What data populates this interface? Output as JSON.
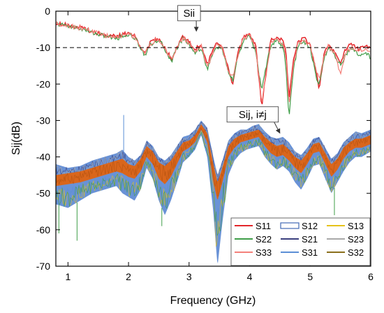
{
  "chart_data": {
    "type": "line",
    "title": "",
    "xlabel": "Frequency (GHz)",
    "ylabel": "Sij(dB)",
    "xlim": [
      0.8,
      6.0
    ],
    "ylim": [
      -70,
      0
    ],
    "x_ticks": [
      1,
      2,
      3,
      4,
      5,
      6
    ],
    "x_tick_labels": [
      "1",
      "2",
      "3",
      "4",
      "5",
      "6"
    ],
    "y_ticks": [
      0,
      -10,
      -20,
      -30,
      -40,
      -50,
      -60,
      -70
    ],
    "y_tick_labels": [
      "0",
      "-10",
      "-20",
      "-30",
      "-40",
      "-50",
      "-60",
      "-70"
    ],
    "grid": false,
    "legend_position": "bottom-right",
    "reference_line": {
      "y": -10,
      "style": "dashed",
      "color": "#000000"
    },
    "annotations": [
      {
        "text": "Sii",
        "x": 3.0,
        "y": -1.5,
        "arrow_to": [
          3.12,
          -5.5
        ]
      },
      {
        "text": "Sij, i≠j",
        "x": 4.05,
        "y": -29.3,
        "arrow_to": [
          4.5,
          -33.5
        ]
      }
    ],
    "reflection_series": [
      {
        "name": "S11",
        "color": "#e3262b",
        "x": [
          0.8,
          1.0,
          1.2,
          1.4,
          1.6,
          1.8,
          2.0,
          2.1,
          2.2,
          2.27,
          2.35,
          2.45,
          2.55,
          2.65,
          2.72,
          2.8,
          2.9,
          3.0,
          3.1,
          3.2,
          3.3,
          3.38,
          3.45,
          3.55,
          3.65,
          3.72,
          3.8,
          3.9,
          4.0,
          4.1,
          4.2,
          4.26,
          4.35,
          4.45,
          4.55,
          4.6,
          4.65,
          4.72,
          4.8,
          4.9,
          5.0,
          5.1,
          5.15,
          5.22,
          5.3,
          5.4,
          5.5,
          5.6,
          5.7,
          5.8,
          5.9,
          6.0
        ],
        "y": [
          -3.2,
          -3.8,
          -4.5,
          -5.5,
          -6.5,
          -7.0,
          -6.0,
          -6.8,
          -9.5,
          -11.5,
          -9.0,
          -7.5,
          -8.5,
          -11.5,
          -13.0,
          -9.5,
          -7.0,
          -8.5,
          -10.5,
          -9.0,
          -15.0,
          -11.0,
          -8.5,
          -9.5,
          -16.0,
          -20.5,
          -12.0,
          -7.0,
          -6.0,
          -9.5,
          -26.5,
          -18.0,
          -8.0,
          -7.0,
          -8.0,
          -11.0,
          -24.0,
          -14.0,
          -8.0,
          -7.5,
          -9.0,
          -17.0,
          -22.0,
          -12.5,
          -9.0,
          -11.0,
          -14.0,
          -10.0,
          -9.0,
          -10.5,
          -9.5,
          -10.5
        ]
      },
      {
        "name": "S22",
        "color": "#3f9e48",
        "x": [
          0.8,
          1.0,
          1.2,
          1.4,
          1.6,
          1.8,
          2.0,
          2.1,
          2.2,
          2.27,
          2.35,
          2.45,
          2.55,
          2.65,
          2.72,
          2.8,
          2.9,
          3.0,
          3.1,
          3.2,
          3.3,
          3.38,
          3.45,
          3.55,
          3.65,
          3.72,
          3.8,
          3.9,
          4.0,
          4.1,
          4.2,
          4.26,
          4.35,
          4.45,
          4.55,
          4.6,
          4.65,
          4.72,
          4.8,
          4.9,
          5.0,
          5.1,
          5.15,
          5.22,
          5.3,
          5.4,
          5.5,
          5.6,
          5.7,
          5.8,
          5.9,
          6.0
        ],
        "y": [
          -3.5,
          -4.0,
          -4.8,
          -5.8,
          -6.8,
          -7.5,
          -6.3,
          -7.3,
          -10.0,
          -12.0,
          -9.5,
          -8.0,
          -9.0,
          -12.0,
          -13.5,
          -10.0,
          -7.5,
          -9.0,
          -11.5,
          -10.0,
          -16.0,
          -12.5,
          -9.5,
          -10.5,
          -17.0,
          -19.0,
          -13.0,
          -8.0,
          -7.0,
          -11.0,
          -22.0,
          -16.0,
          -9.5,
          -8.0,
          -9.5,
          -15.0,
          -29.5,
          -16.0,
          -9.5,
          -8.5,
          -10.0,
          -18.0,
          -20.0,
          -13.5,
          -10.0,
          -12.0,
          -15.0,
          -11.5,
          -10.5,
          -12.0,
          -11.0,
          -13.0
        ]
      },
      {
        "name": "S33",
        "color": "#f4807a",
        "x": [
          0.8,
          1.0,
          1.2,
          1.4,
          1.6,
          1.8,
          2.0,
          2.1,
          2.2,
          2.27,
          2.35,
          2.45,
          2.55,
          2.65,
          2.72,
          2.8,
          2.9,
          3.0,
          3.1,
          3.2,
          3.3,
          3.38,
          3.45,
          3.55,
          3.65,
          3.72,
          3.8,
          3.9,
          4.0,
          4.1,
          4.2,
          4.26,
          4.35,
          4.45,
          4.55,
          4.6,
          4.65,
          4.72,
          4.8,
          4.9,
          5.0,
          5.1,
          5.15,
          5.22,
          5.3,
          5.4,
          5.5,
          5.6,
          5.7,
          5.8,
          5.9,
          6.0
        ],
        "y": [
          -3.4,
          -3.9,
          -4.6,
          -5.6,
          -6.6,
          -7.2,
          -6.1,
          -7.0,
          -9.8,
          -11.8,
          -9.3,
          -7.8,
          -8.8,
          -11.8,
          -13.2,
          -9.8,
          -7.3,
          -8.8,
          -11.0,
          -9.5,
          -15.5,
          -12.0,
          -9.0,
          -10.0,
          -16.5,
          -18.0,
          -12.5,
          -7.5,
          -6.5,
          -10.0,
          -25.0,
          -19.0,
          -8.8,
          -7.5,
          -8.8,
          -13.0,
          -26.0,
          -15.0,
          -8.8,
          -8.0,
          -9.5,
          -16.0,
          -19.0,
          -13.0,
          -9.5,
          -11.5,
          -17.0,
          -10.8,
          -9.8,
          -11.2,
          -10.2,
          -11.8
        ]
      }
    ],
    "series": [
      {
        "name": "S11",
        "color": "#e3262b"
      },
      {
        "name": "S12",
        "color": "#4169b5"
      },
      {
        "name": "S13",
        "color": "#e6c21a"
      },
      {
        "name": "S22",
        "color": "#3f9e48"
      },
      {
        "name": "S21",
        "color": "#3a3f7e"
      },
      {
        "name": "S23",
        "color": "#a8a8a8"
      },
      {
        "name": "S33",
        "color": "#f4807a"
      },
      {
        "name": "S31",
        "color": "#5b8fd6"
      },
      {
        "name": "S32",
        "color": "#8a6f1c"
      }
    ],
    "transmission_band": {
      "x": [
        0.8,
        1.0,
        1.2,
        1.4,
        1.6,
        1.8,
        1.9,
        2.0,
        2.1,
        2.2,
        2.3,
        2.4,
        2.5,
        2.6,
        2.7,
        2.8,
        2.9,
        3.0,
        3.1,
        3.2,
        3.3,
        3.4,
        3.47,
        3.55,
        3.65,
        3.75,
        3.85,
        3.95,
        4.05,
        4.15,
        4.25,
        4.35,
        4.45,
        4.55,
        4.65,
        4.75,
        4.85,
        4.95,
        5.05,
        5.15,
        5.25,
        5.35,
        5.45,
        5.55,
        5.65,
        5.75,
        5.85,
        6.0
      ],
      "upper": [
        -42.0,
        -43.0,
        -42.5,
        -41.0,
        -40.0,
        -39.0,
        -38.0,
        -40.0,
        -41.0,
        -39.5,
        -35.5,
        -37.0,
        -40.0,
        -41.0,
        -39.5,
        -37.0,
        -34.5,
        -34.0,
        -32.5,
        -30.0,
        -32.0,
        -40.0,
        -45.0,
        -41.0,
        -35.5,
        -33.5,
        -32.5,
        -32.5,
        -31.5,
        -31.0,
        -33.0,
        -34.5,
        -35.0,
        -34.5,
        -36.0,
        -38.5,
        -39.5,
        -37.5,
        -35.0,
        -34.5,
        -37.5,
        -40.5,
        -39.0,
        -36.0,
        -34.5,
        -33.0,
        -33.5,
        -32.5
      ],
      "core_upper": [
        -45.0,
        -44.5,
        -44.0,
        -43.0,
        -42.0,
        -41.0,
        -40.5,
        -42.0,
        -42.5,
        -40.5,
        -37.0,
        -38.5,
        -41.5,
        -42.5,
        -41.0,
        -38.5,
        -36.0,
        -35.5,
        -34.0,
        -31.0,
        -33.5,
        -42.0,
        -47.0,
        -43.0,
        -37.0,
        -35.0,
        -34.0,
        -33.5,
        -33.0,
        -32.5,
        -34.5,
        -36.0,
        -37.0,
        -36.5,
        -38.0,
        -40.0,
        -41.0,
        -39.0,
        -36.5,
        -36.0,
        -39.0,
        -42.0,
        -40.5,
        -37.5,
        -36.0,
        -35.0,
        -35.0,
        -34.0
      ],
      "core_lower": [
        -48.0,
        -47.5,
        -47.0,
        -46.0,
        -45.0,
        -44.0,
        -44.5,
        -45.5,
        -46.0,
        -44.0,
        -40.0,
        -42.0,
        -46.0,
        -47.5,
        -45.5,
        -42.0,
        -38.5,
        -37.5,
        -36.0,
        -32.5,
        -36.0,
        -47.0,
        -52.0,
        -47.0,
        -40.0,
        -37.5,
        -36.0,
        -35.5,
        -35.0,
        -34.5,
        -37.0,
        -39.0,
        -40.0,
        -39.5,
        -41.0,
        -43.0,
        -44.5,
        -42.0,
        -39.0,
        -38.5,
        -42.0,
        -45.5,
        -43.5,
        -40.5,
        -38.5,
        -37.5,
        -37.5,
        -36.5
      ],
      "lower": [
        -53.0,
        -54.0,
        -52.0,
        -50.0,
        -49.0,
        -48.0,
        -50.0,
        -51.0,
        -52.0,
        -49.0,
        -43.0,
        -46.0,
        -52.0,
        -56.0,
        -52.0,
        -47.0,
        -41.5,
        -40.0,
        -38.0,
        -34.0,
        -40.0,
        -55.0,
        -70.0,
        -58.0,
        -45.0,
        -41.0,
        -39.0,
        -38.0,
        -37.5,
        -37.0,
        -40.0,
        -42.0,
        -43.5,
        -42.5,
        -44.0,
        -47.0,
        -49.0,
        -46.0,
        -42.5,
        -42.0,
        -46.0,
        -50.0,
        -47.0,
        -44.0,
        -41.5,
        -40.0,
        -40.0,
        -38.5
      ],
      "spikes": [
        {
          "x": 0.85,
          "y": -61.0
        },
        {
          "x": 1.15,
          "y": -63.0
        },
        {
          "x": 1.92,
          "y": -28.5
        },
        {
          "x": 2.55,
          "y": -59.0
        },
        {
          "x": 4.15,
          "y": -31.5
        },
        {
          "x": 5.4,
          "y": -56.0
        }
      ]
    }
  }
}
